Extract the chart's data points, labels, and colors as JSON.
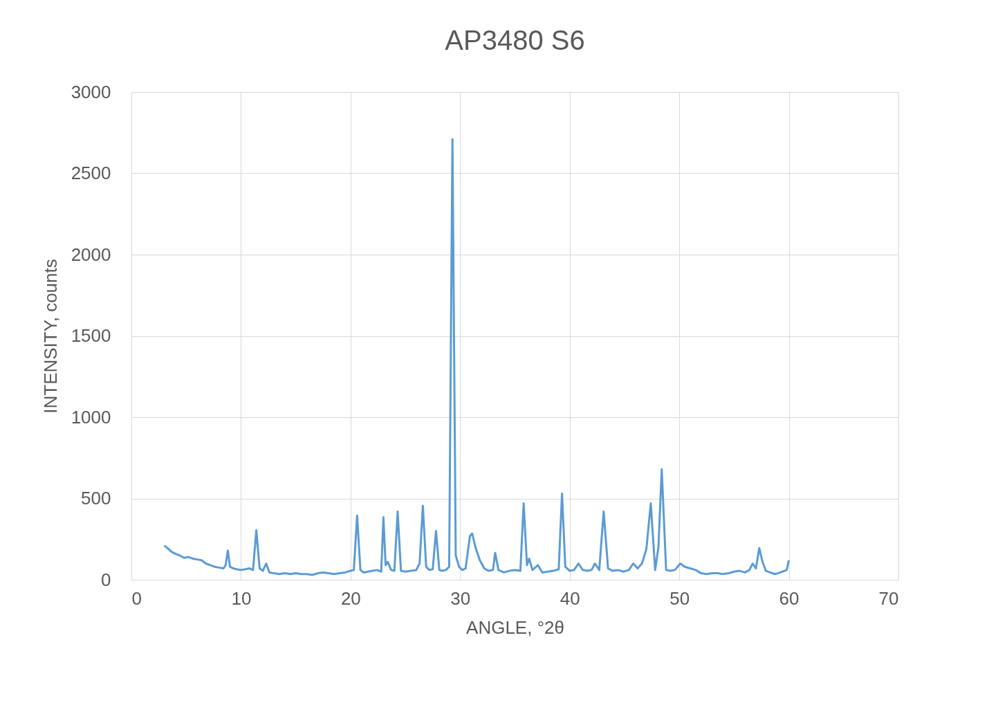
{
  "chart_data": {
    "type": "line",
    "title": "AP3480 S6",
    "xlabel": "ANGLE, °2θ",
    "ylabel": "INTENSITY, counts",
    "series": [
      {
        "color": "#5b9bd5",
        "x": [
          3.0,
          3.3,
          3.6,
          4.0,
          4.4,
          4.8,
          5.2,
          5.6,
          6.0,
          6.4,
          6.8,
          7.2,
          7.6,
          8.0,
          8.4,
          8.6,
          8.8,
          9.0,
          9.3,
          9.6,
          10.0,
          10.4,
          10.8,
          11.1,
          11.4,
          11.7,
          12.0,
          12.3,
          12.6,
          13.0,
          13.5,
          14.0,
          14.5,
          15.0,
          15.5,
          16.0,
          16.5,
          17.0,
          17.5,
          18.0,
          18.5,
          19.0,
          19.5,
          20.0,
          20.3,
          20.6,
          20.9,
          21.2,
          21.6,
          22.0,
          22.4,
          22.8,
          23.0,
          23.2,
          23.4,
          23.7,
          24.0,
          24.3,
          24.6,
          25.0,
          25.5,
          26.0,
          26.3,
          26.6,
          26.9,
          27.2,
          27.5,
          27.8,
          28.1,
          28.4,
          28.7,
          29.0,
          29.3,
          29.6,
          29.9,
          30.2,
          30.5,
          30.9,
          31.1,
          31.4,
          31.8,
          32.2,
          32.6,
          33.0,
          33.2,
          33.5,
          34.0,
          34.5,
          35.0,
          35.5,
          35.8,
          36.1,
          36.3,
          36.6,
          37.1,
          37.5,
          38.0,
          38.5,
          39.0,
          39.3,
          39.6,
          40.0,
          40.4,
          40.8,
          41.2,
          41.6,
          42.0,
          42.3,
          42.7,
          43.1,
          43.5,
          43.9,
          44.4,
          44.9,
          45.4,
          45.8,
          46.2,
          46.6,
          47.0,
          47.4,
          47.8,
          48.1,
          48.4,
          48.8,
          49.2,
          49.6,
          50.1,
          50.5,
          51.0,
          51.5,
          52.0,
          52.5,
          53.0,
          53.5,
          54.0,
          54.5,
          55.0,
          55.5,
          56.0,
          56.4,
          56.7,
          57.0,
          57.3,
          57.6,
          57.9,
          58.3,
          58.7,
          59.0,
          59.4,
          59.8,
          60.0
        ],
        "values": [
          210,
          195,
          175,
          160,
          150,
          135,
          140,
          130,
          125,
          120,
          100,
          90,
          80,
          75,
          70,
          90,
          180,
          80,
          70,
          65,
          60,
          65,
          70,
          60,
          305,
          70,
          55,
          100,
          45,
          40,
          35,
          40,
          35,
          40,
          35,
          35,
          30,
          40,
          45,
          40,
          35,
          40,
          45,
          55,
          60,
          395,
          60,
          45,
          50,
          55,
          60,
          50,
          385,
          90,
          110,
          60,
          55,
          420,
          55,
          50,
          55,
          60,
          100,
          455,
          80,
          60,
          65,
          300,
          60,
          55,
          60,
          80,
          2710,
          150,
          80,
          60,
          70,
          270,
          285,
          200,
          120,
          70,
          55,
          60,
          165,
          60,
          45,
          55,
          60,
          55,
          470,
          90,
          130,
          60,
          90,
          45,
          50,
          55,
          65,
          530,
          80,
          55,
          60,
          100,
          60,
          55,
          60,
          100,
          60,
          420,
          70,
          55,
          60,
          50,
          60,
          100,
          70,
          100,
          190,
          470,
          60,
          200,
          680,
          60,
          55,
          60,
          100,
          80,
          70,
          60,
          40,
          35,
          40,
          40,
          35,
          40,
          50,
          55,
          45,
          60,
          100,
          70,
          195,
          110,
          55,
          45,
          35,
          40,
          50,
          60,
          120
        ]
      }
    ],
    "xlim": [
      0,
      70
    ],
    "xticks": [
      0,
      10,
      20,
      30,
      40,
      50,
      60,
      70
    ],
    "ylim": [
      0,
      3000
    ],
    "yticks": [
      0,
      500,
      1000,
      1500,
      2000,
      2500,
      3000
    ],
    "grid": true
  }
}
